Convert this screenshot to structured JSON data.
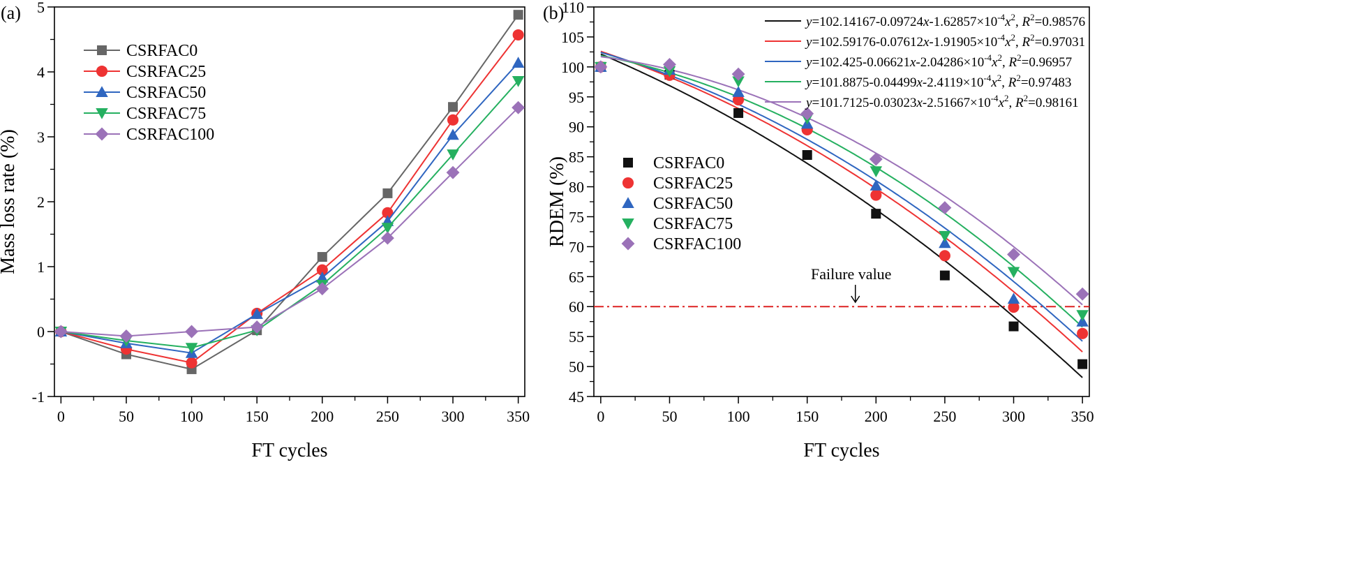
{
  "chart_data": [
    {
      "type": "line",
      "panel_label": "(a)",
      "x": [
        0,
        50,
        100,
        150,
        200,
        250,
        300,
        350
      ],
      "xlabel": "FT cycles",
      "ylabel": "Mass loss rate (%)",
      "xlim": [
        -5,
        355
      ],
      "ylim": [
        -1,
        5
      ],
      "xticks": [
        0,
        50,
        100,
        150,
        200,
        250,
        300,
        350
      ],
      "yticks": [
        -1,
        0,
        1,
        2,
        3,
        4,
        5
      ],
      "legend_position": "top-left",
      "series": [
        {
          "name": "CSRFAC0",
          "color": "#666666",
          "marker": "square",
          "values": [
            0,
            -0.35,
            -0.58,
            0.02,
            1.15,
            2.13,
            3.46,
            4.88
          ]
        },
        {
          "name": "CSRFAC25",
          "color": "#ee3333",
          "marker": "circle",
          "values": [
            0,
            -0.27,
            -0.48,
            0.28,
            0.95,
            1.83,
            3.26,
            4.57
          ]
        },
        {
          "name": "CSRFAC50",
          "color": "#2f66c0",
          "marker": "triangle-up",
          "values": [
            0,
            -0.18,
            -0.33,
            0.27,
            0.83,
            1.7,
            3.03,
            4.14
          ]
        },
        {
          "name": "CSRFAC75",
          "color": "#25b060",
          "marker": "triangle-down",
          "values": [
            0,
            -0.14,
            -0.25,
            0.02,
            0.72,
            1.6,
            2.73,
            3.86
          ]
        },
        {
          "name": "CSRFAC100",
          "color": "#9b72b8",
          "marker": "diamond",
          "values": [
            0,
            -0.07,
            0,
            0.07,
            0.66,
            1.44,
            2.45,
            3.45
          ]
        }
      ]
    },
    {
      "type": "scatter",
      "panel_label": "(b)",
      "x": [
        0,
        50,
        100,
        150,
        200,
        250,
        300,
        350
      ],
      "xlabel": "FT cycles",
      "ylabel": "RDEM (%)",
      "xlim": [
        -5,
        355
      ],
      "ylim": [
        45,
        110
      ],
      "xticks": [
        0,
        50,
        100,
        150,
        200,
        250,
        300,
        350
      ],
      "yticks": [
        45,
        50,
        55,
        60,
        65,
        70,
        75,
        80,
        85,
        90,
        95,
        100,
        105,
        110
      ],
      "legend_position": "center-left",
      "failure_line": {
        "y": 60,
        "color": "#dd2222",
        "label": "Failure value",
        "label_x": 185
      },
      "series": [
        {
          "name": "CSRFAC0",
          "color": "#111111",
          "marker": "square",
          "values": [
            100,
            98.7,
            92.3,
            85.3,
            75.5,
            65.2,
            56.7,
            50.4
          ],
          "fit": {
            "a": 102.14167,
            "b": -0.09724,
            "c": -0.000162857
          },
          "fit_text": [
            "102.14167-0.09724",
            "-1.62857×10",
            "=0.98576"
          ]
        },
        {
          "name": "CSRFAC25",
          "color": "#ee3333",
          "marker": "circle",
          "values": [
            100,
            98.6,
            94.5,
            89.5,
            78.6,
            68.5,
            59.9,
            55.5
          ],
          "fit": {
            "a": 102.59176,
            "b": -0.07612,
            "c": -0.000191905
          },
          "fit_text": [
            "102.59176-0.07612",
            "-1.91905×10",
            "=0.97031"
          ]
        },
        {
          "name": "CSRFAC50",
          "color": "#2f66c0",
          "marker": "triangle-up",
          "values": [
            100,
            99.5,
            95.8,
            90.5,
            80.2,
            70.6,
            61.3,
            57.5
          ],
          "fit": {
            "a": 102.425,
            "b": -0.06621,
            "c": -0.000204286
          },
          "fit_text": [
            "102.425-0.06621",
            "-2.04286×10",
            "=0.96957"
          ]
        },
        {
          "name": "CSRFAC75",
          "color": "#25b060",
          "marker": "triangle-down",
          "values": [
            100,
            99.3,
            97.6,
            91.4,
            82.6,
            71.8,
            65.8,
            58.6
          ],
          "fit": {
            "a": 101.8875,
            "b": -0.04499,
            "c": -0.00024119
          },
          "fit_text": [
            "101.8875-0.04499",
            "-2.4119×10",
            "=0.97483"
          ]
        },
        {
          "name": "CSRFAC100",
          "color": "#9b72b8",
          "marker": "diamond",
          "values": [
            100,
            100.4,
            98.8,
            92.2,
            84.6,
            76.5,
            68.7,
            62.1
          ],
          "fit": {
            "a": 101.7125,
            "b": -0.03023,
            "c": -0.000251667
          },
          "fit_text": [
            "101.7125-0.03023",
            "-2.51667×10",
            "=0.98161"
          ]
        }
      ]
    }
  ]
}
